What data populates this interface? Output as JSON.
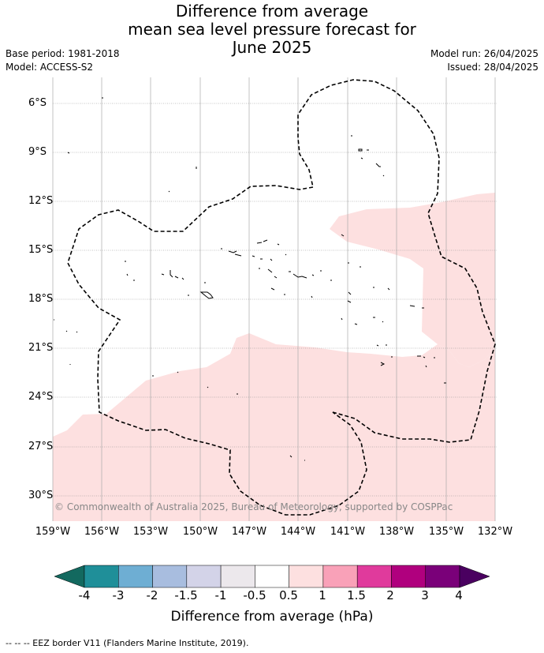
{
  "header": {
    "title_line1": "Difference from average",
    "title_line2": "mean sea level pressure forecast for",
    "title_line3": "June 2025",
    "base_period": "Base period: 1981-2018",
    "model": "Model: ACCESS-S2",
    "model_run": "Model run: 26/04/2025",
    "issued": "Issued: 28/04/2025"
  },
  "map": {
    "lat_labels": [
      "6°S",
      "9°S",
      "12°S",
      "15°S",
      "18°S",
      "21°S",
      "24°S",
      "27°S",
      "30°S"
    ],
    "lon_labels": [
      "159°W",
      "156°W",
      "153°W",
      "150°W",
      "147°W",
      "144°W",
      "141°W",
      "138°W",
      "135°W",
      "132°W"
    ],
    "copyright": "© Commonwealth of Australia 2025, Bureau of Meteorology, supported by COSPPac",
    "anomaly_fill_color": "#fde0e0",
    "eez_line_color": "#000000"
  },
  "colorbar": {
    "labels": [
      "-4",
      "-3",
      "-2",
      "-1.5",
      "-1",
      "-0.5",
      "0.5",
      "1",
      "1.5",
      "2",
      "3",
      "4"
    ],
    "colors": [
      "#13695f",
      "#1f8f99",
      "#6eaed3",
      "#a8bddf",
      "#d3d3e8",
      "#ece8ec",
      "#ffffff",
      "#fde0e0",
      "#f9a1b8",
      "#e03a9c",
      "#b0007e",
      "#7a0079",
      "#4a0060"
    ],
    "title": "Difference from average (hPa)"
  },
  "footer": {
    "legend_text": "--  --  -- EEZ border V11 (Flanders Marine Institute, 2019)."
  }
}
